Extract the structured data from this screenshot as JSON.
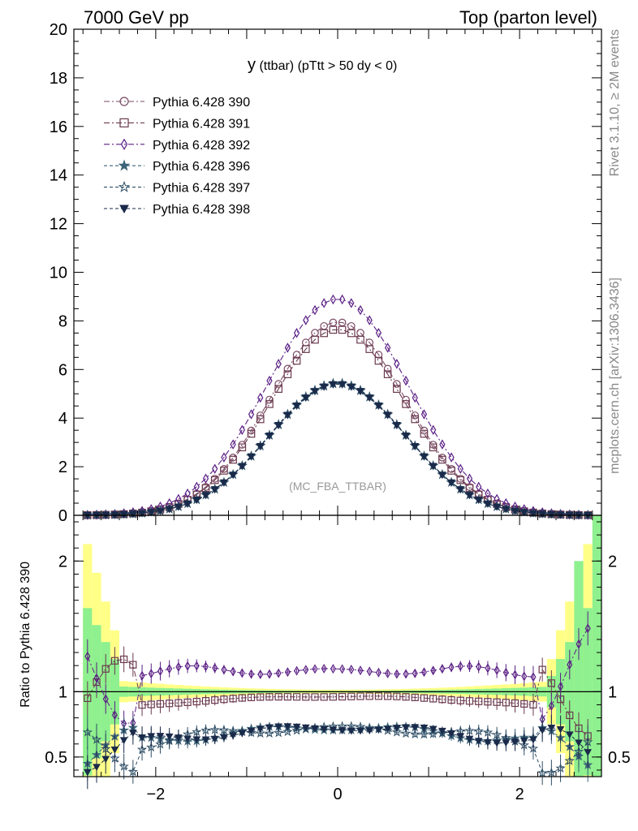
{
  "header": {
    "left": "7000 GeV pp",
    "right": "Top (parton level)"
  },
  "side": {
    "rivet": "Rivet 3.1.10, ≥ 2M events",
    "mcplots": "mcplots.cern.ch [arXiv:1306.3436]"
  },
  "main": {
    "title_main": "y",
    "title_sub": " (ttbar) (pTtt > 50 dy < 0)",
    "watermark": "(MC_FBA_TTBAR)"
  },
  "ratio": {
    "ylabel": "Ratio to Pythia 6.428 390"
  },
  "chart_data": [
    {
      "type": "line",
      "panel": "main",
      "xlim": [
        -2.9,
        2.9
      ],
      "ylim": [
        0,
        20
      ],
      "yticks": [
        0,
        2,
        4,
        6,
        8,
        10,
        12,
        14,
        16,
        18,
        20
      ],
      "ytick_labels": [
        "0",
        "2",
        "4",
        "6",
        "8",
        "10",
        "12",
        "14",
        "16",
        "18",
        "20"
      ],
      "legend_position": "top-left",
      "series": [
        {
          "name": "Pythia 6.428 390",
          "marker": "circle-open",
          "color": "#7a4a63",
          "dash": "7,3,2,3",
          "amp": 7.95,
          "sigma": 0.74
        },
        {
          "name": "Pythia 6.428 391",
          "marker": "square-open",
          "color": "#6b3a4e",
          "dash": "7,3,2,3",
          "amp": 7.65,
          "sigma": 0.74
        },
        {
          "name": "Pythia 6.428 392",
          "marker": "diamond-open",
          "color": "#5a1f85",
          "dash": "7,3,2,3",
          "amp": 8.9,
          "sigma": 0.77
        },
        {
          "name": "Pythia 6.428 396",
          "marker": "star-filled",
          "color": "#3d6478",
          "dash": "4,3",
          "amp": 5.45,
          "sigma": 0.75
        },
        {
          "name": "Pythia 6.428 397",
          "marker": "star-open",
          "color": "#2e4e66",
          "dash": "4,3",
          "amp": 5.42,
          "sigma": 0.75
        },
        {
          "name": "Pythia 6.428 398",
          "marker": "triangle-down-filled",
          "color": "#1a2a4a",
          "dash": "4,3",
          "amp": 5.4,
          "sigma": 0.75
        }
      ]
    },
    {
      "type": "line",
      "panel": "ratio",
      "xlim": [
        -2.9,
        2.9
      ],
      "ylim": [
        0.35,
        2.35
      ],
      "ylabel": "Ratio to Pythia 6.428 390",
      "yticks": [
        0.5,
        1,
        2
      ],
      "ytick_labels": [
        "0.5",
        "1",
        "2"
      ],
      "xticks": [
        -2,
        0,
        2
      ],
      "xtick_labels": [
        "−2",
        "0",
        "2"
      ],
      "series": [
        {
          "name": "Pythia 6.428 391",
          "ratio_level": 0.95
        },
        {
          "name": "Pythia 6.428 392",
          "ratio_level": 1.16
        },
        {
          "name": "Pythia 6.428 396",
          "ratio_level": 0.7
        },
        {
          "name": "Pythia 6.428 397",
          "ratio_level": 0.7
        },
        {
          "name": "Pythia 6.428 398",
          "ratio_level": 0.7
        }
      ]
    }
  ]
}
